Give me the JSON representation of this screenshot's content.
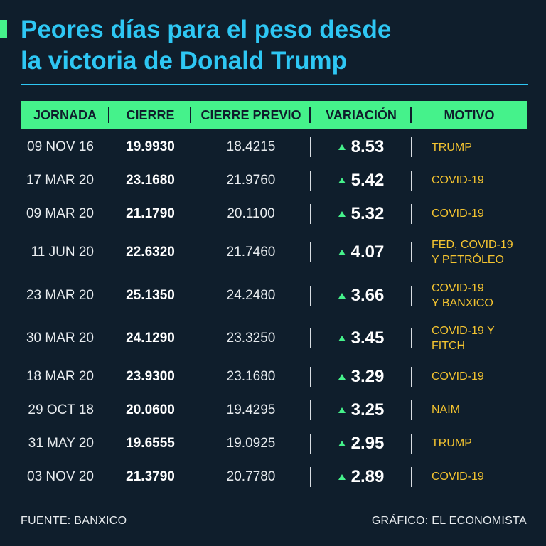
{
  "colors": {
    "background": "#0f1e2c",
    "accent": "#45f28b",
    "title": "#2ec7f4",
    "motive": "#f4c430",
    "up": "#45f28b"
  },
  "title_lines": [
    "Peores días para el peso desde",
    "la victoria de Donald Trump"
  ],
  "footer": {
    "source": "FUENTE: BANXICO",
    "credit": "GRÁFICO: EL ECONOMISTA"
  },
  "chart_data": {
    "type": "table",
    "title": "Peores días para el peso desde la victoria de Donald Trump",
    "columns": [
      "JORNADA",
      "CIERRE",
      "CIERRE PREVIO",
      "VARIACIÓN",
      "MOTIVO"
    ],
    "rows": [
      {
        "jornada": "09 NOV 16",
        "cierre": "19.9930",
        "previo": "18.4215",
        "variacion": "8.53",
        "motivo": [
          "TRUMP"
        ]
      },
      {
        "jornada": "17 MAR 20",
        "cierre": "23.1680",
        "previo": "21.9760",
        "variacion": "5.42",
        "motivo": [
          "COVID-19"
        ]
      },
      {
        "jornada": "09 MAR 20",
        "cierre": "21.1790",
        "previo": "20.1100",
        "variacion": "5.32",
        "motivo": [
          "COVID-19"
        ]
      },
      {
        "jornada": "11 JUN 20",
        "cierre": "22.6320",
        "previo": "21.7460",
        "variacion": "4.07",
        "motivo": [
          "FED, COVID-19",
          "Y PETRÓLEO"
        ]
      },
      {
        "jornada": "23 MAR 20",
        "cierre": "25.1350",
        "previo": "24.2480",
        "variacion": "3.66",
        "motivo": [
          "COVID-19",
          "Y BANXICO"
        ]
      },
      {
        "jornada": "30 MAR 20",
        "cierre": "24.1290",
        "previo": "23.3250",
        "variacion": "3.45",
        "motivo": [
          "COVID-19 Y",
          "FITCH"
        ]
      },
      {
        "jornada": "18 MAR 20",
        "cierre": "23.9300",
        "previo": "23.1680",
        "variacion": "3.29",
        "motivo": [
          "COVID-19"
        ]
      },
      {
        "jornada": "29 OCT 18",
        "cierre": "20.0600",
        "previo": "19.4295",
        "variacion": "3.25",
        "motivo": [
          "NAIM"
        ]
      },
      {
        "jornada": "31 MAY 20",
        "cierre": "19.6555",
        "previo": "19.0925",
        "variacion": "2.95",
        "motivo": [
          "TRUMP"
        ]
      },
      {
        "jornada": "03 NOV 20",
        "cierre": "21.3790",
        "previo": "20.7780",
        "variacion": "2.89",
        "motivo": [
          "COVID-19"
        ]
      }
    ]
  }
}
